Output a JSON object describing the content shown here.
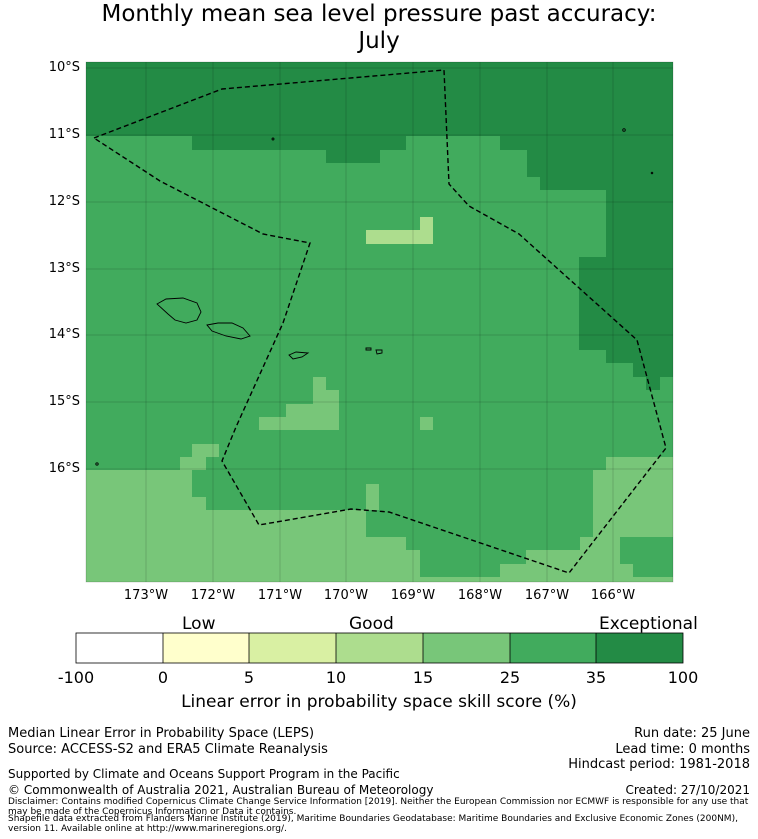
{
  "title": {
    "line1": "Monthly mean sea level pressure past accuracy:",
    "line2": "July"
  },
  "map": {
    "lat_ticks": [
      "10°S",
      "11°S",
      "12°S",
      "13°S",
      "14°S",
      "15°S",
      "16°S"
    ],
    "lon_ticks": [
      "173°W",
      "172°W",
      "171°W",
      "170°W",
      "169°W",
      "168°W",
      "167°W",
      "166°W"
    ],
    "boundary_style": "dashed black line (maritime boundary)",
    "colors": {
      "c35_100": "#238b45",
      "c25_35": "#41ab5d",
      "c15_25": "#78c679",
      "c10_15": "#addd8e"
    }
  },
  "colorbar": {
    "category_labels": [
      "Low",
      "Good",
      "Exceptional"
    ],
    "tick_labels": [
      "-100",
      "0",
      "5",
      "10",
      "15",
      "25",
      "35",
      "100"
    ],
    "colors": [
      "#ffffff",
      "#ffffcc",
      "#d9f0a3",
      "#addd8e",
      "#78c679",
      "#41ab5d",
      "#238b45"
    ],
    "xlabel": "Linear error in probability space skill score (%)"
  },
  "footer": {
    "left_line1": "Median Linear Error in Probability Space (LEPS)",
    "left_line2": "Source: ACCESS-S2 and ERA5 Climate Reanalysis",
    "support": "Supported by Climate and Oceans Support Program in the Pacific",
    "copyright": "© Commonwealth of Australia 2021, Australian Bureau of Meteorology",
    "run_date": "Run date: 25 June",
    "lead_time": "Lead time: 0 months",
    "hindcast": "Hindcast period: 1981-2018",
    "created": "Created: 27/10/2021",
    "disclaimer": "Disclaimer: Contains modified Copernicus Climate Change Service Information [2019]. Neither the European Commission nor ECMWF is responsible for any use that may be made of the Copernicus Information or Data it contains.",
    "shapefile": "Shapefile data extracted from Flanders Marine Institute (2019), Maritime Boundaries Geodatabase: Maritime Boundaries and Exclusive Economic Zones (200NM), version 11. Available online at http://www.marineregions.org/."
  }
}
